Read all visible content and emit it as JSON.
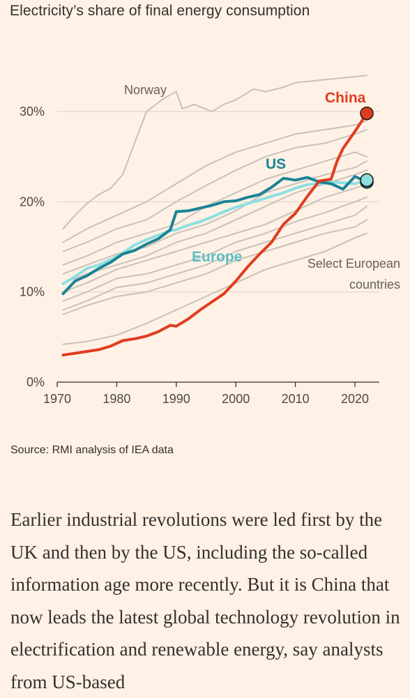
{
  "chart_title": "Electricity’s share of final energy consumption",
  "source": "Source: RMI analysis of IEA data",
  "article_text": "Earlier industrial revolutions were led first by the UK and then by the US, including the so-called information age more recently. But it is China that now leads the latest global technology revolution in electrification and renewable energy, say analysts from US-based",
  "colors": {
    "background": "#fff1e5",
    "gridline": "#e0d6cc",
    "axis": "#33302e",
    "countries": "#c9c1b9",
    "china": "#e03c1f",
    "us": "#1a8397",
    "europe": "#8ddfe0"
  },
  "chart_data": {
    "type": "line",
    "title": "Electricity’s share of final energy consumption",
    "xlabel": "",
    "ylabel": "",
    "xlim": [
      1970,
      2023
    ],
    "ylim": [
      0,
      35
    ],
    "x_ticks": [
      1970,
      1980,
      1990,
      2000,
      2010,
      2020
    ],
    "y_ticks": [
      0,
      10,
      20,
      30
    ],
    "y_tick_labels": [
      "0%",
      "10%",
      "20%",
      "30%"
    ],
    "grid": true,
    "annotations": {
      "norway": "Norway",
      "select_european_line1": "Select European",
      "select_european_line2": "countries"
    },
    "series": [
      {
        "name": "China",
        "role": "highlight",
        "x": [
          1971,
          1973,
          1975,
          1977,
          1979,
          1981,
          1983,
          1985,
          1987,
          1989,
          1990,
          1992,
          1994,
          1996,
          1998,
          2000,
          2002,
          2004,
          2006,
          2008,
          2010,
          2012,
          2014,
          2016,
          2017,
          2018,
          2020,
          2022
        ],
        "values": [
          3.0,
          3.2,
          3.4,
          3.6,
          4.0,
          4.6,
          4.8,
          5.1,
          5.6,
          6.3,
          6.2,
          7.0,
          8.0,
          8.9,
          9.8,
          11.2,
          12.8,
          14.2,
          15.5,
          17.5,
          18.7,
          20.6,
          22.3,
          22.5,
          24.5,
          25.9,
          27.8,
          29.8
        ],
        "end_marker": true
      },
      {
        "name": "US",
        "role": "highlight",
        "x": [
          1971,
          1973,
          1975,
          1977,
          1979,
          1981,
          1983,
          1985,
          1987,
          1989,
          1990,
          1992,
          1994,
          1996,
          1998,
          2000,
          2002,
          2004,
          2006,
          2008,
          2010,
          2012,
          2014,
          2016,
          2018,
          2020,
          2022
        ],
        "values": [
          9.8,
          11.2,
          11.8,
          12.6,
          13.3,
          14.2,
          14.6,
          15.3,
          15.9,
          16.9,
          18.9,
          19.0,
          19.3,
          19.6,
          20.0,
          20.1,
          20.5,
          20.8,
          21.6,
          22.6,
          22.4,
          22.7,
          22.2,
          22.0,
          21.4,
          22.8,
          22.2
        ],
        "end_marker": true
      },
      {
        "name": "Europe",
        "role": "highlight",
        "x": [
          1971,
          1973,
          1975,
          1977,
          1979,
          1981,
          1983,
          1985,
          1987,
          1989,
          1990,
          1992,
          1994,
          1996,
          1998,
          2000,
          2002,
          2004,
          2006,
          2008,
          2010,
          2012,
          2014,
          2016,
          2018,
          2020,
          2022
        ],
        "values": [
          10.9,
          11.7,
          12.6,
          13.0,
          13.6,
          14.3,
          15.2,
          15.8,
          16.3,
          16.8,
          16.9,
          17.4,
          17.8,
          18.3,
          18.9,
          19.4,
          19.8,
          20.2,
          20.6,
          21.0,
          21.5,
          21.9,
          22.0,
          22.2,
          22.1,
          22.0,
          22.4
        ],
        "end_marker": true
      },
      {
        "name": "Norway",
        "role": "background",
        "x": [
          1971,
          1973,
          1975,
          1977,
          1979,
          1981,
          1983,
          1985,
          1986,
          1988,
          1990,
          1991,
          1993,
          1996,
          1998,
          2000,
          2003,
          2005,
          2008,
          2010,
          2013,
          2016,
          2019,
          2022
        ],
        "values": [
          17.0,
          18.5,
          19.8,
          20.8,
          21.5,
          23.0,
          26.5,
          30.0,
          30.5,
          31.5,
          32.2,
          30.3,
          30.8,
          30.0,
          30.8,
          31.3,
          32.5,
          32.2,
          32.7,
          33.2,
          33.4,
          33.6,
          33.8,
          34.0
        ]
      },
      {
        "role": "background",
        "x": [
          1971,
          1975,
          1980,
          1985,
          1990,
          1995,
          2000,
          2005,
          2010,
          2015,
          2020,
          2022
        ],
        "values": [
          15.5,
          17.0,
          18.5,
          20.0,
          22.0,
          24.0,
          25.5,
          26.5,
          27.5,
          28.0,
          28.5,
          29.0
        ]
      },
      {
        "role": "background",
        "x": [
          1971,
          1975,
          1980,
          1985,
          1990,
          1995,
          2000,
          2005,
          2010,
          2015,
          2020,
          2022
        ],
        "values": [
          14.5,
          15.5,
          17.0,
          18.0,
          20.0,
          21.8,
          23.5,
          25.0,
          26.0,
          26.5,
          27.5,
          28.0
        ]
      },
      {
        "role": "background",
        "x": [
          1971,
          1975,
          1980,
          1985,
          1990,
          1995,
          2000,
          2005,
          2010,
          2015,
          2020,
          2022
        ],
        "values": [
          13.0,
          14.0,
          15.5,
          16.5,
          17.5,
          19.5,
          21.0,
          22.5,
          23.5,
          24.5,
          25.5,
          25.0
        ]
      },
      {
        "role": "background",
        "x": [
          1971,
          1975,
          1980,
          1985,
          1990,
          1995,
          2000,
          2005,
          2010,
          2015,
          2020,
          2022
        ],
        "values": [
          12.0,
          13.0,
          14.2,
          15.0,
          16.5,
          17.5,
          19.0,
          21.0,
          22.0,
          23.0,
          23.8,
          24.5
        ]
      },
      {
        "role": "background",
        "x": [
          1971,
          1975,
          1980,
          1985,
          1990,
          1995,
          2000,
          2005,
          2010,
          2015,
          2020,
          2022
        ],
        "values": [
          11.0,
          12.0,
          13.0,
          14.0,
          15.5,
          16.5,
          18.0,
          19.5,
          21.0,
          22.0,
          23.0,
          23.5
        ]
      },
      {
        "role": "background",
        "x": [
          1971,
          1975,
          1980,
          1985,
          1990,
          1995,
          2000,
          2005,
          2010,
          2015,
          2020,
          2022
        ],
        "values": [
          10.0,
          11.0,
          12.5,
          13.5,
          14.5,
          15.5,
          16.5,
          17.5,
          19.0,
          20.5,
          21.5,
          22.0
        ]
      },
      {
        "role": "background",
        "x": [
          1971,
          1975,
          1980,
          1985,
          1990,
          1995,
          2000,
          2005,
          2010,
          2015,
          2020,
          2022
        ],
        "values": [
          9.0,
          10.0,
          11.5,
          12.0,
          13.0,
          14.0,
          15.5,
          16.5,
          17.8,
          18.8,
          20.0,
          20.5
        ]
      },
      {
        "role": "background",
        "x": [
          1971,
          1975,
          1980,
          1985,
          1990,
          1995,
          2000,
          2005,
          2010,
          2015,
          2020,
          2022
        ],
        "values": [
          8.0,
          9.0,
          10.5,
          11.0,
          12.0,
          13.0,
          14.5,
          15.5,
          16.5,
          17.5,
          18.5,
          19.5
        ]
      },
      {
        "role": "background",
        "x": [
          1971,
          1975,
          1980,
          1985,
          1990,
          1995,
          2000,
          2005,
          2010,
          2015,
          2020,
          2022
        ],
        "values": [
          7.5,
          8.5,
          9.5,
          10.0,
          11.0,
          12.0,
          13.5,
          14.5,
          15.5,
          16.5,
          17.2,
          18.0
        ]
      },
      {
        "role": "background",
        "x": [
          1971,
          1975,
          1980,
          1985,
          1990,
          1995,
          2000,
          2005,
          2010,
          2015,
          2020,
          2022
        ],
        "values": [
          4.2,
          4.5,
          5.2,
          6.5,
          8.0,
          9.5,
          11.0,
          12.5,
          13.5,
          14.5,
          16.0,
          16.5
        ]
      }
    ]
  }
}
